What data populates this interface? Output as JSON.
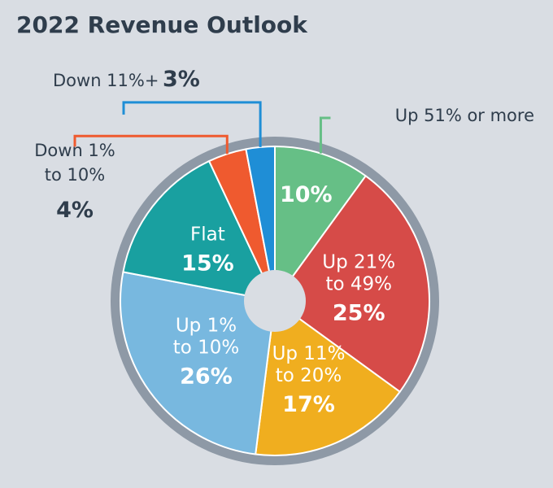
{
  "chart_data": {
    "type": "pie",
    "title": "2022 Revenue Outlook",
    "slices": [
      {
        "label": "Up 51% or more",
        "value": 10,
        "display": "10%",
        "color": "#66bf86"
      },
      {
        "label": "Up 21% to 49%",
        "value": 25,
        "display": "25%",
        "color": "#d64b48"
      },
      {
        "label": "Up 11% to 20%",
        "value": 17,
        "display": "17%",
        "color": "#f0ae1f"
      },
      {
        "label": "Up 1% to 10%",
        "value": 26,
        "display": "26%",
        "color": "#78b8df"
      },
      {
        "label": "Flat",
        "value": 15,
        "display": "15%",
        "color": "#19a0a0"
      },
      {
        "label": "Down 1% to 10%",
        "value": 4,
        "display": "4%",
        "color": "#ef5a2f"
      },
      {
        "label": "Down 11%+",
        "value": 3,
        "display": "3%",
        "color": "#1f8ed6"
      }
    ]
  },
  "colors": {
    "background": "#d9dde3",
    "ring": "#8e99a6",
    "hole": "#d9dde3",
    "text_dark": "#2f3d4c",
    "text_light": "#ffffff"
  }
}
